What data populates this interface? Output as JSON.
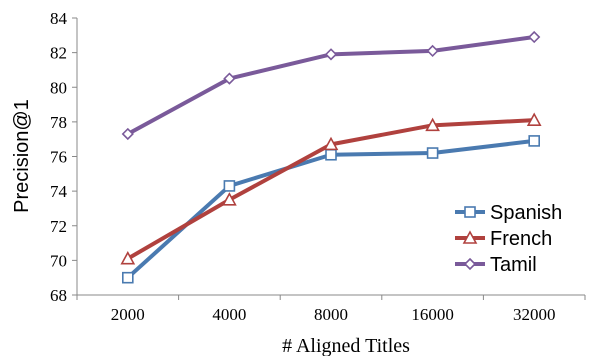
{
  "chart_data": {
    "type": "line",
    "categories": [
      "2000",
      "4000",
      "8000",
      "16000",
      "32000"
    ],
    "series": [
      {
        "name": "Spanish",
        "values": [
          69.0,
          74.3,
          76.1,
          76.2,
          76.9
        ],
        "color": "#4a7ab0",
        "marker": "square"
      },
      {
        "name": "French",
        "values": [
          70.1,
          73.5,
          76.7,
          77.8,
          78.1
        ],
        "color": "#b0413e",
        "marker": "triangle"
      },
      {
        "name": "Tamil",
        "values": [
          77.3,
          80.5,
          81.9,
          82.1,
          82.9
        ],
        "color": "#7a5a9a",
        "marker": "diamond"
      }
    ],
    "xlabel": "# Aligned Titles",
    "ylabel": "Precision@1",
    "ylim": [
      68,
      84
    ],
    "yticks": [
      "68",
      "70",
      "72",
      "74",
      "76",
      "78",
      "80",
      "82",
      "84"
    ],
    "grid": false,
    "legend_position": "bottom-right"
  }
}
